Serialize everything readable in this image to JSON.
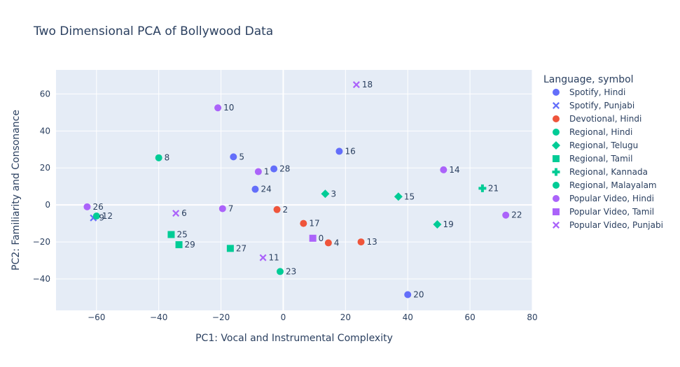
{
  "chart_data": {
    "type": "scatter",
    "title": "Two Dimensional PCA of Bollywood Data",
    "xlabel": "PC1: Vocal and Instrumental Complexity",
    "ylabel": "PC2: Familiarity and Consonance",
    "xlim": [
      -73,
      80
    ],
    "ylim": [
      -57,
      73
    ],
    "xticks": [
      -60,
      -40,
      -20,
      0,
      20,
      40,
      60,
      80
    ],
    "yticks": [
      -40,
      -20,
      0,
      20,
      40,
      60
    ],
    "grid": true,
    "legend": {
      "title": "Language, symbol",
      "placement": "right"
    },
    "series": [
      {
        "name": "Spotify, Hindi",
        "color": "#636efa",
        "symbol": "circle",
        "points": [
          {
            "x": 18,
            "y": 29,
            "label": "16"
          },
          {
            "x": -16,
            "y": 26,
            "label": "5"
          },
          {
            "x": -3,
            "y": 19.5,
            "label": "28"
          },
          {
            "x": -9,
            "y": 8.5,
            "label": "24"
          },
          {
            "x": 40,
            "y": -48.5,
            "label": "20"
          }
        ]
      },
      {
        "name": "Spotify, Punjabi",
        "color": "#636efa",
        "symbol": "x",
        "points": [
          {
            "x": -61,
            "y": -7,
            "label": "9"
          }
        ]
      },
      {
        "name": "Devotional, Hindi",
        "color": "#ef553b",
        "symbol": "circle",
        "points": [
          {
            "x": -2,
            "y": -2.5,
            "label": "2"
          },
          {
            "x": 6.5,
            "y": -10,
            "label": "17"
          },
          {
            "x": 14.5,
            "y": -20.5,
            "label": "4"
          },
          {
            "x": 25,
            "y": -20,
            "label": "13"
          }
        ]
      },
      {
        "name": "Regional, Hindi",
        "color": "#00cc96",
        "symbol": "circle",
        "points": [
          {
            "x": -40,
            "y": 25.5,
            "label": "8"
          },
          {
            "x": -60,
            "y": -6,
            "label": "12"
          },
          {
            "x": -1,
            "y": -36,
            "label": "23"
          }
        ]
      },
      {
        "name": "Regional, Telugu",
        "color": "#00cc96",
        "symbol": "diamond",
        "points": [
          {
            "x": 13.5,
            "y": 6,
            "label": "3"
          },
          {
            "x": 37,
            "y": 4.5,
            "label": "15"
          },
          {
            "x": 49.5,
            "y": -10.5,
            "label": "19"
          }
        ]
      },
      {
        "name": "Regional, Tamil",
        "color": "#00cc96",
        "symbol": "square",
        "points": [
          {
            "x": -36,
            "y": -16,
            "label": "25"
          },
          {
            "x": -33.5,
            "y": -21.5,
            "label": "29"
          },
          {
            "x": -17,
            "y": -23.5,
            "label": "27"
          }
        ]
      },
      {
        "name": "Regional, Kannada",
        "color": "#00cc96",
        "symbol": "cross",
        "points": [
          {
            "x": 64,
            "y": 9,
            "label": "21"
          }
        ]
      },
      {
        "name": "Regional, Malayalam",
        "color": "#00cc96",
        "symbol": "circle",
        "points": []
      },
      {
        "name": "Popular Video, Hindi",
        "color": "#ab63fa",
        "symbol": "circle",
        "points": [
          {
            "x": -21,
            "y": 52.5,
            "label": "10"
          },
          {
            "x": -8,
            "y": 18,
            "label": "1"
          },
          {
            "x": 51.5,
            "y": 19,
            "label": "14"
          },
          {
            "x": -63,
            "y": -1,
            "label": "26"
          },
          {
            "x": -19.5,
            "y": -2,
            "label": "7"
          },
          {
            "x": 71.5,
            "y": -5.5,
            "label": "22"
          }
        ]
      },
      {
        "name": "Popular Video, Tamil",
        "color": "#ab63fa",
        "symbol": "square",
        "points": [
          {
            "x": 9.5,
            "y": -18,
            "label": "0"
          }
        ]
      },
      {
        "name": "Popular Video, Punjabi",
        "color": "#ab63fa",
        "symbol": "x",
        "points": [
          {
            "x": 23.5,
            "y": 65,
            "label": "18"
          },
          {
            "x": -34.5,
            "y": -4.5,
            "label": "6"
          },
          {
            "x": -6.5,
            "y": -28.5,
            "label": "11"
          }
        ]
      }
    ]
  }
}
